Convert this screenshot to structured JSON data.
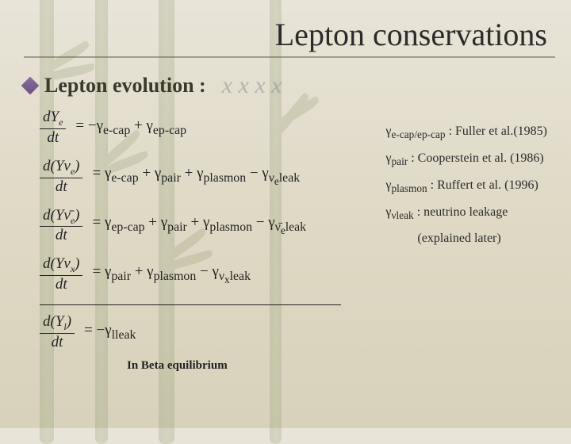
{
  "title": "Lepton conservations",
  "bullet": "Lepton evolution :",
  "script_watermark": "x x x x",
  "equations": {
    "ye": {
      "num": "dY",
      "num_sub": "e",
      "den": "dt",
      "rhs": "= −γ<sub>e-cap</sub> + γ<sub>ep-cap</sub>"
    },
    "ynue": {
      "num": "d(Yν",
      "num_sub": "e",
      "num_close": ")",
      "den": "dt",
      "rhs": "= γ<sub>e-cap</sub> + γ<sub>pair</sub> + γ<sub>plasmon</sub> − γ<sub>ν<sub>e</sub>leak</sub>"
    },
    "ynuebar": {
      "num": "d(Yν̄",
      "num_sub": "e",
      "num_close": ")",
      "den": "dt",
      "rhs": "= γ<sub>ep-cap</sub> + γ<sub>pair</sub> + γ<sub>plasmon</sub> − γ<sub>ν̄<sub>e</sub>leak</sub>"
    },
    "ynux": {
      "num": "d(Yν",
      "num_sub": "x",
      "num_close": ")",
      "den": "dt",
      "rhs": "= γ<sub>pair</sub> + γ<sub>plasmon</sub> − γ<sub>ν<sub>x</sub>leak</sub>"
    },
    "yl": {
      "num": "d(Y",
      "num_sub": "l",
      "num_close": ")",
      "den": "dt",
      "rhs": "= −γ<sub>lleak</sub>"
    }
  },
  "refs": [
    "γ<sub>e-cap/ep-cap</sub> : Fuller et al.(1985)",
    "γ<sub>pair</sub> : Cooperstein et al. (1986)",
    "γ<sub>plasmon</sub> : Ruffert et al. (1996)",
    "γ<sub>νleak</sub> : neutrino leakage",
    "(explained later)"
  ],
  "beta_label": "In Beta equilibrium",
  "colors": {
    "bg_top": "#e8e4d8",
    "bg_bottom": "#d8d2bc",
    "bamboo": "#5b6e35",
    "diamond": "#6b4f7e",
    "text": "#2b2b2b"
  }
}
